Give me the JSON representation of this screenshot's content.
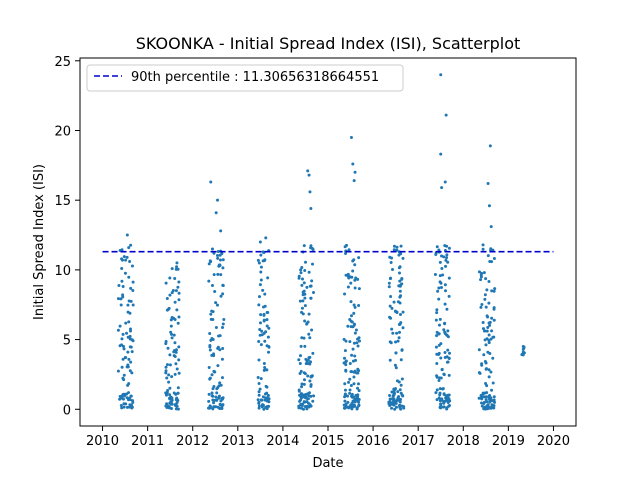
{
  "chart_data": {
    "type": "scatter",
    "title": "SKOONKA - Initial Spread Index (ISI), Scatterplot",
    "xlabel": "Date",
    "ylabel": "Initial Spread Index (ISI)",
    "xlim": [
      2009.5,
      2020.5
    ],
    "ylim": [
      -1.2,
      25.2
    ],
    "xticks": [
      "2010",
      "2011",
      "2012",
      "2013",
      "2014",
      "2015",
      "2016",
      "2017",
      "2018",
      "2019",
      "2020"
    ],
    "yticks": [
      0,
      5,
      10,
      15,
      20,
      25
    ],
    "point_color": "#1f77b4",
    "reference_line": {
      "label": "90th percentile : 11.30656318664551",
      "value": 11.30656318664551,
      "color": "#0000cd",
      "style": "dashed"
    },
    "legend_position": "top-left",
    "grid": false,
    "seasons": [
      {
        "start": 2010.35,
        "end": 2010.68,
        "approx_count": 100,
        "peak": 12.5,
        "notable": [
          [
            2010.55,
            12.5
          ],
          [
            2010.58,
            11.6
          ],
          [
            2010.6,
            10.6
          ]
        ]
      },
      {
        "start": 2011.4,
        "end": 2011.7,
        "approx_count": 100,
        "peak": 10.5,
        "notable": [
          [
            2011.65,
            10.5
          ]
        ]
      },
      {
        "start": 2012.35,
        "end": 2012.7,
        "approx_count": 110,
        "peak": 16.3,
        "notable": [
          [
            2012.4,
            16.3
          ],
          [
            2012.55,
            15.0
          ],
          [
            2012.52,
            14.1
          ],
          [
            2012.62,
            12.8
          ]
        ]
      },
      {
        "start": 2013.45,
        "end": 2013.7,
        "approx_count": 90,
        "peak": 12.3,
        "notable": [
          [
            2013.5,
            12.0
          ],
          [
            2013.62,
            12.3
          ]
        ]
      },
      {
        "start": 2014.35,
        "end": 2014.68,
        "approx_count": 120,
        "peak": 17.1,
        "notable": [
          [
            2014.55,
            17.1
          ],
          [
            2014.58,
            16.8
          ],
          [
            2014.6,
            15.6
          ],
          [
            2014.62,
            14.4
          ]
        ]
      },
      {
        "start": 2015.35,
        "end": 2015.7,
        "approx_count": 130,
        "peak": 19.5,
        "notable": [
          [
            2015.52,
            19.5
          ],
          [
            2015.55,
            17.6
          ],
          [
            2015.6,
            17.0
          ],
          [
            2015.58,
            16.4
          ]
        ]
      },
      {
        "start": 2016.35,
        "end": 2016.68,
        "approx_count": 120,
        "peak": 11.7,
        "notable": [
          [
            2016.62,
            11.7
          ],
          [
            2016.58,
            11.3
          ]
        ]
      },
      {
        "start": 2017.38,
        "end": 2017.7,
        "approx_count": 120,
        "peak": 24.0,
        "notable": [
          [
            2017.5,
            24.0
          ],
          [
            2017.62,
            21.1
          ],
          [
            2017.5,
            18.3
          ],
          [
            2017.6,
            16.3
          ],
          [
            2017.52,
            15.9
          ]
        ]
      },
      {
        "start": 2018.35,
        "end": 2018.7,
        "approx_count": 120,
        "peak": 18.9,
        "notable": [
          [
            2018.6,
            18.9
          ],
          [
            2018.55,
            16.2
          ],
          [
            2018.58,
            14.6
          ],
          [
            2018.62,
            13.1
          ]
        ]
      },
      {
        "start": 2019.3,
        "end": 2019.36,
        "approx_count": 5,
        "peak": 4.5,
        "notable": [
          [
            2019.33,
            4.5
          ],
          [
            2019.33,
            4.3
          ],
          [
            2019.33,
            4.1
          ],
          [
            2019.33,
            3.9
          ]
        ]
      }
    ]
  }
}
